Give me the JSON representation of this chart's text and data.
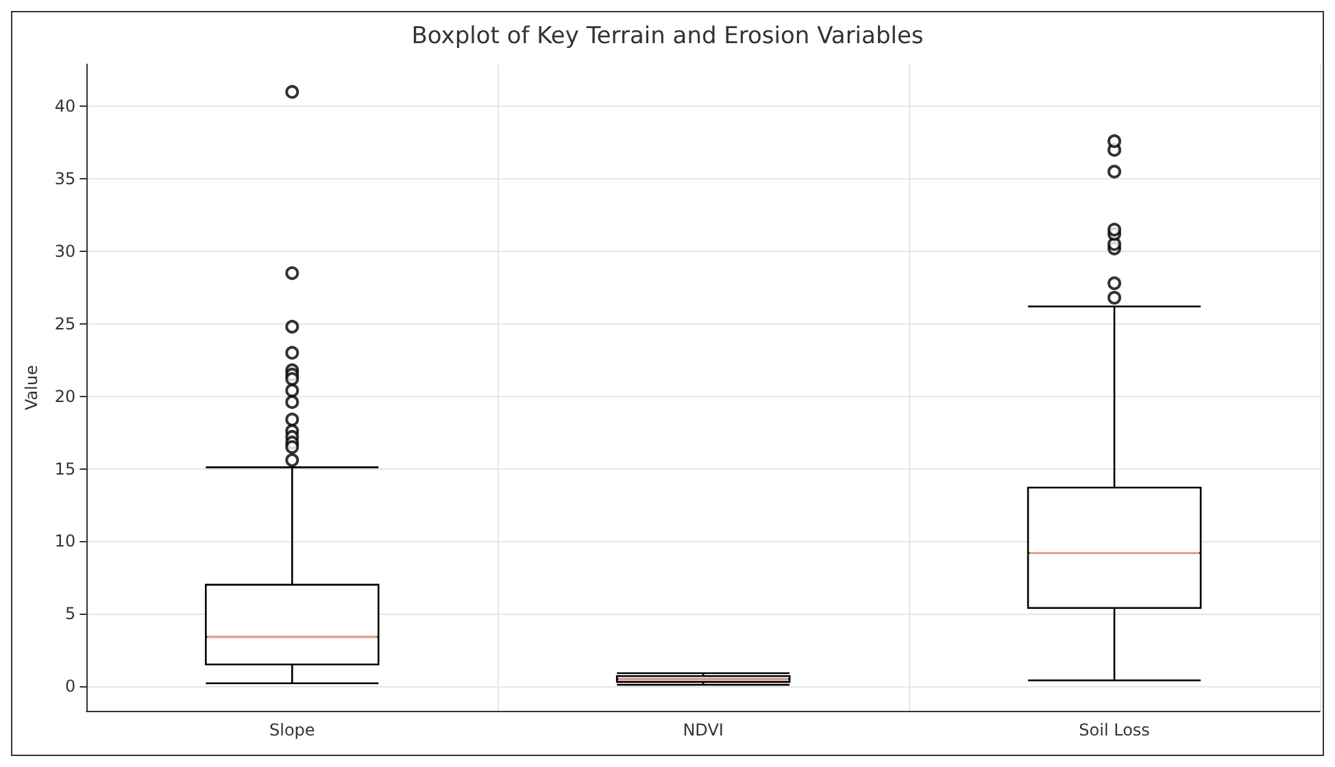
{
  "chart_data": {
    "type": "box",
    "title": "Boxplot of Key Terrain and Erosion Variables",
    "ylabel": "Value",
    "categories": [
      "Slope",
      "NDVI",
      "Soil Loss"
    ],
    "boxes": [
      {
        "low": 0.2,
        "q1": 1.5,
        "median": 3.4,
        "q3": 7.0,
        "high": 15.1,
        "outliers": [
          41,
          28.5,
          24.8,
          23,
          21.8,
          21.5,
          21.2,
          20.4,
          19.6,
          18.4,
          17.6,
          17.2,
          16.8,
          16.5,
          15.6
        ]
      },
      {
        "low": 0.1,
        "q1": 0.3,
        "median": 0.5,
        "q3": 0.7,
        "high": 0.9
      },
      {
        "low": 0.4,
        "q1": 5.4,
        "median": 9.2,
        "q3": 13.7,
        "high": 26.2,
        "outliers": [
          26.8,
          27.8,
          30.2,
          30.5,
          31.2,
          31.5,
          35.5,
          37,
          37.6
        ]
      }
    ],
    "color": "#000000",
    "ylim": [
      -1.7,
      42.9
    ],
    "yticks": [
      0,
      5,
      10,
      15,
      20,
      25,
      30,
      35,
      40
    ],
    "grid": true,
    "marker": "circle"
  }
}
